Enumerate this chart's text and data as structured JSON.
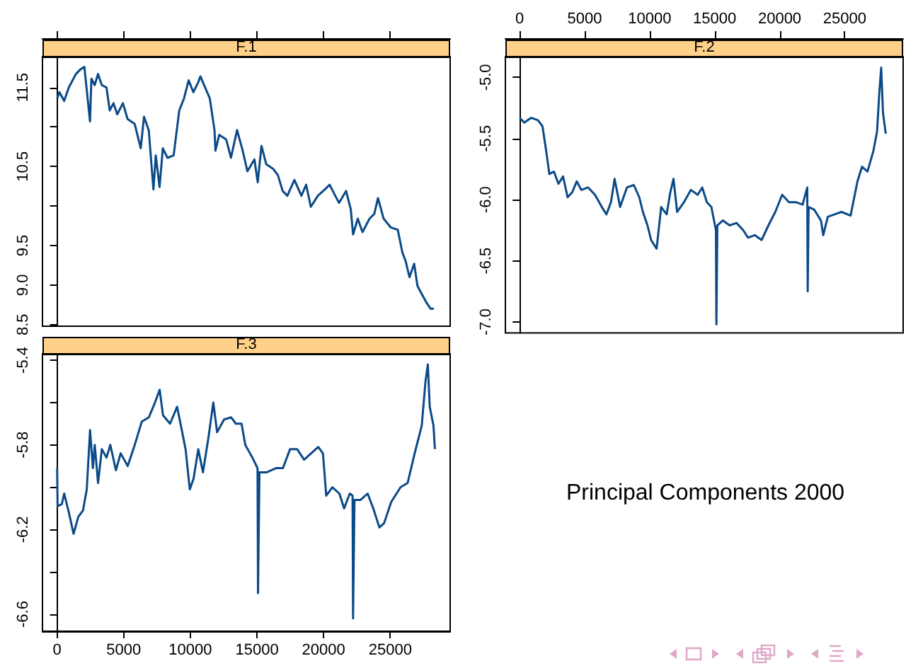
{
  "chart_data": [
    {
      "type": "line",
      "title": "F.1",
      "tick_labels": "y",
      "xlim": [
        -1100,
        29500
      ],
      "xticks": [
        0,
        5000,
        10000,
        15000,
        20000,
        25000
      ],
      "ylim": [
        8.48,
        11.89
      ],
      "yticks": [
        8.5,
        {
          "value": 9,
          "label": "9.0"
        },
        9.5,
        {
          "value": 10,
          "label": null
        },
        10.5,
        {
          "value": 11,
          "label": null
        },
        11.5
      ],
      "x": [
        0,
        176,
        529,
        881,
        1410,
        1763,
        2045,
        2186,
        2468,
        2574,
        2821,
        3068,
        3350,
        3703,
        3949,
        4231,
        4513,
        4937,
        5289,
        5818,
        6276,
        6523,
        6876,
        7228,
        7405,
        7687,
        7934,
        8287,
        8745,
        9168,
        9520,
        9873,
        10225,
        10578,
        10754,
        11107,
        11460,
        11812,
        11883,
        12165,
        12694,
        13047,
        13505,
        13928,
        14281,
        14810,
        15056,
        15338,
        15691,
        16220,
        16573,
        16926,
        17278,
        17807,
        18336,
        18689,
        19041,
        19570,
        20099,
        20451,
        20874,
        21157,
        21685,
        22038,
        22214,
        22567,
        22920,
        23449,
        23801,
        24083,
        24506,
        25035,
        25564,
        25917,
        26164,
        26446,
        26798,
        27045,
        27327,
        27680,
        28032,
        28279
      ],
      "series": [
        {
          "color": "#0b4a88",
          "values": [
            11.36,
            11.44,
            11.33,
            11.5,
            11.67,
            11.73,
            11.76,
            11.53,
            11.07,
            11.61,
            11.53,
            11.67,
            11.53,
            11.5,
            11.21,
            11.3,
            11.16,
            11.3,
            11.1,
            11.04,
            10.73,
            11.13,
            10.96,
            10.21,
            10.64,
            10.24,
            10.73,
            10.61,
            10.64,
            11.21,
            11.36,
            11.59,
            11.44,
            11.56,
            11.64,
            11.5,
            11.36,
            10.96,
            10.7,
            10.9,
            10.84,
            10.61,
            10.96,
            10.7,
            10.44,
            10.59,
            10.3,
            10.76,
            10.53,
            10.47,
            10.39,
            10.19,
            10.13,
            10.33,
            10.13,
            10.27,
            9.99,
            10.13,
            10.21,
            10.27,
            10.13,
            10.04,
            10.19,
            9.96,
            9.64,
            9.84,
            9.67,
            9.84,
            9.9,
            10.1,
            9.84,
            9.73,
            9.7,
            9.41,
            9.3,
            9.1,
            9.27,
            8.99,
            8.9,
            8.79,
            8.7,
            8.7
          ]
        }
      ]
    },
    {
      "type": "line",
      "title": "F.2",
      "xlim": [
        -1100,
        29500
      ],
      "xticks": [
        0,
        5000,
        10000,
        15000,
        20000,
        25000
      ],
      "ylim": [
        -7.09,
        -4.83
      ],
      "yticks": [
        {
          "value": -5,
          "label": "-5.0"
        },
        -5.5,
        {
          "value": -6,
          "label": "-6.0"
        },
        -6.5,
        {
          "value": -7,
          "label": "-7.0"
        }
      ],
      "x": [
        0,
        351,
        878,
        1404,
        1756,
        2037,
        2282,
        2633,
        2985,
        3336,
        3687,
        4038,
        4389,
        4740,
        5267,
        5794,
        6320,
        6671,
        7022,
        7303,
        7725,
        8251,
        8778,
        9199,
        9480,
        9831,
        10112,
        10534,
        10885,
        11306,
        11587,
        11833,
        12114,
        12640,
        13167,
        13694,
        14045,
        14396,
        14747,
        15098,
        15133,
        15204,
        15625,
        16152,
        16678,
        17205,
        17556,
        18083,
        18610,
        19136,
        19663,
        20190,
        20716,
        21243,
        21770,
        22121,
        22156,
        22226,
        22647,
        23174,
        23350,
        23701,
        24228,
        24754,
        25456,
        25983,
        26334,
        26756,
        27212,
        27493,
        27669,
        27809,
        27949,
        28160
      ],
      "series": [
        {
          "color": "#0b4a88",
          "values": [
            -5.33,
            -5.37,
            -5.33,
            -5.35,
            -5.4,
            -5.6,
            -5.79,
            -5.77,
            -5.87,
            -5.81,
            -5.98,
            -5.94,
            -5.85,
            -5.92,
            -5.9,
            -5.96,
            -6.06,
            -6.12,
            -6.02,
            -5.83,
            -6.06,
            -5.9,
            -5.88,
            -5.98,
            -6.1,
            -6.21,
            -6.33,
            -6.4,
            -6.06,
            -6.12,
            -5.94,
            -5.83,
            -6.1,
            -6.02,
            -5.92,
            -5.96,
            -5.9,
            -6.02,
            -6.06,
            -6.25,
            -7.02,
            -6.21,
            -6.17,
            -6.21,
            -6.19,
            -6.25,
            -6.31,
            -6.29,
            -6.33,
            -6.21,
            -6.1,
            -5.96,
            -6.02,
            -6.02,
            -6.04,
            -5.9,
            -6.75,
            -6.06,
            -6.08,
            -6.17,
            -6.29,
            -6.14,
            -6.12,
            -6.1,
            -6.13,
            -5.85,
            -5.73,
            -5.77,
            -5.6,
            -5.44,
            -5.12,
            -4.92,
            -5.29,
            -5.46
          ]
        }
      ]
    },
    {
      "type": "line",
      "title": "F.3",
      "xlim": [
        -1100,
        29500
      ],
      "xticks": [
        0,
        5000,
        10000,
        15000,
        20000,
        25000
      ],
      "ylim": [
        -6.68,
        -5.37
      ],
      "yticks": [
        -5.4,
        {
          "value": -5.6,
          "label": null
        },
        -5.8,
        {
          "value": -6,
          "label": null
        },
        -6.2,
        {
          "value": -6.4,
          "label": null
        },
        -6.6
      ],
      "x": [
        0,
        35,
        353,
        530,
        883,
        1236,
        1589,
        1942,
        2225,
        2472,
        2684,
        2825,
        3072,
        3355,
        3708,
        3991,
        4414,
        4767,
        5297,
        5826,
        6356,
        6886,
        7345,
        7698,
        7945,
        8475,
        9004,
        9357,
        9640,
        9958,
        10240,
        10593,
        10946,
        11370,
        11723,
        12006,
        12535,
        13065,
        13418,
        13842,
        14124,
        14654,
        15042,
        15078,
        15184,
        15714,
        16419,
        16949,
        17479,
        18008,
        18538,
        19068,
        19598,
        19951,
        20198,
        20657,
        21186,
        21540,
        21964,
        22175,
        22211,
        22317,
        22776,
        23305,
        23729,
        24188,
        24541,
        25071,
        25777,
        26306,
        26836,
        27366,
        27648,
        27825,
        27966,
        28249,
        28355
      ],
      "series": [
        {
          "color": "#0b4a88",
          "values": [
            -5.91,
            -6.09,
            -6.08,
            -6.03,
            -6.12,
            -6.22,
            -6.14,
            -6.11,
            -6.01,
            -5.73,
            -5.91,
            -5.8,
            -5.98,
            -5.82,
            -5.86,
            -5.8,
            -5.92,
            -5.84,
            -5.9,
            -5.8,
            -5.69,
            -5.67,
            -5.6,
            -5.54,
            -5.66,
            -5.7,
            -5.62,
            -5.73,
            -5.82,
            -6.01,
            -5.96,
            -5.82,
            -5.93,
            -5.76,
            -5.6,
            -5.74,
            -5.68,
            -5.67,
            -5.7,
            -5.7,
            -5.8,
            -5.86,
            -5.91,
            -6.5,
            -5.93,
            -5.93,
            -5.91,
            -5.91,
            -5.82,
            -5.82,
            -5.87,
            -5.84,
            -5.81,
            -5.84,
            -6.04,
            -6,
            -6.03,
            -6.1,
            -6.03,
            -6.04,
            -6.62,
            -6.06,
            -6.06,
            -6.03,
            -6.1,
            -6.19,
            -6.17,
            -6.07,
            -6,
            -5.98,
            -5.84,
            -5.71,
            -5.5,
            -5.42,
            -5.62,
            -5.71,
            -5.82
          ]
        }
      ]
    },
    {
      "type": "other",
      "title": "Principal Components 2000"
    }
  ]
}
